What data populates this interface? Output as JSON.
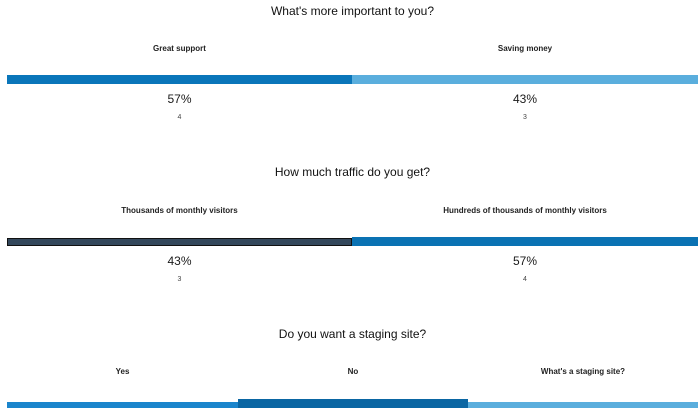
{
  "polls": [
    {
      "title": "What's more important to you?",
      "options": [
        {
          "label": "Great support",
          "percent": "57%",
          "count": "4",
          "bar_color": "#0a76ba"
        },
        {
          "label": "Saving money",
          "percent": "43%",
          "count": "3",
          "bar_color": "#5aaedd"
        }
      ]
    },
    {
      "title": "How much traffic do you get?",
      "options": [
        {
          "label": "Thousands of monthly visitors",
          "percent": "43%",
          "count": "3",
          "bar_color": "#33475b"
        },
        {
          "label": "Hundreds of thousands of monthly visitors",
          "percent": "57%",
          "count": "4",
          "bar_color": "#0a72b3"
        }
      ]
    },
    {
      "title": "Do you want a staging site?",
      "options": [
        {
          "label": "Yes",
          "bar_color": "#1a85cc"
        },
        {
          "label": "No",
          "bar_color": "#0a66a3"
        },
        {
          "label": "What's a staging site?",
          "bar_color": "#5aaedd"
        }
      ]
    }
  ]
}
